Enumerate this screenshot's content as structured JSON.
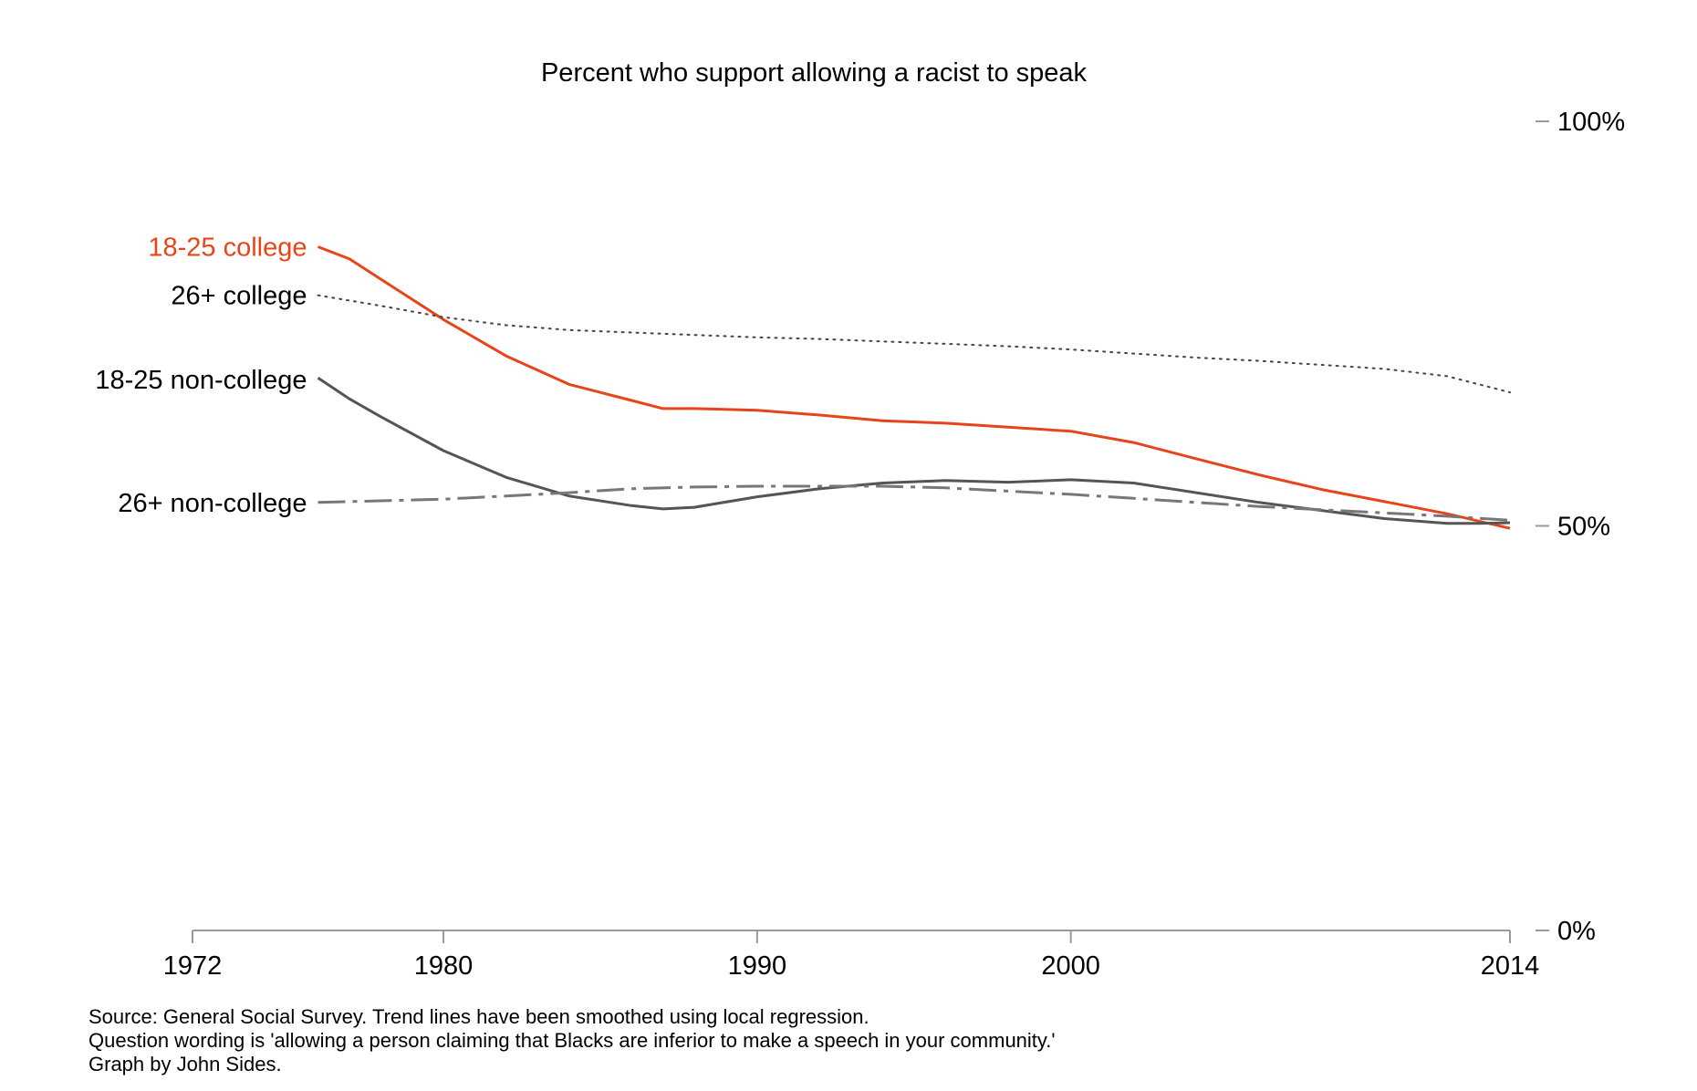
{
  "chart_data": {
    "type": "line",
    "title": "Percent who support allowing a racist to speak",
    "x_ticks": [
      1972,
      1980,
      1990,
      2000,
      2014
    ],
    "xlim": [
      1972,
      2014
    ],
    "ylim": [
      0,
      100
    ],
    "y_ticks": [
      {
        "value": 0,
        "label": "0%"
      },
      {
        "value": 50,
        "label": "50%"
      },
      {
        "value": 100,
        "label": "100%"
      }
    ],
    "grid": false,
    "legend": "direct labels at left end of lines",
    "series": [
      {
        "name": "18-25 college",
        "color": "#e8441a",
        "style": "solid",
        "x": [
          1976,
          1977,
          1978,
          1980,
          1982,
          1984,
          1986,
          1987,
          1988,
          1990,
          1992,
          1994,
          1996,
          1998,
          2000,
          2002,
          2004,
          2006,
          2008,
          2010,
          2012,
          2014
        ],
        "y": [
          84.5,
          83,
          80.5,
          75.5,
          71,
          67.5,
          65.5,
          64.5,
          64.5,
          64.3,
          63.7,
          63,
          62.7,
          62.2,
          61.7,
          60.3,
          58.3,
          56.3,
          54.5,
          53,
          51.5,
          49.7
        ]
      },
      {
        "name": "26+ college",
        "color": "#444444",
        "style": "dotted",
        "x": [
          1976,
          1978,
          1980,
          1982,
          1984,
          1986,
          1988,
          1990,
          1992,
          1994,
          1996,
          1998,
          2000,
          2002,
          2004,
          2006,
          2008,
          2010,
          2012,
          2014
        ],
        "y": [
          78.5,
          77.2,
          75.8,
          74.8,
          74.2,
          73.9,
          73.6,
          73.3,
          73.1,
          72.8,
          72.5,
          72.2,
          71.8,
          71.3,
          70.8,
          70.4,
          69.9,
          69.4,
          68.5,
          66.5
        ]
      },
      {
        "name": "18-25 non-college",
        "color": "#555555",
        "style": "solid",
        "x": [
          1976,
          1977,
          1978,
          1980,
          1982,
          1984,
          1986,
          1987,
          1988,
          1990,
          1992,
          1994,
          1996,
          1998,
          2000,
          2002,
          2004,
          2006,
          2008,
          2010,
          2012,
          2013,
          2014
        ],
        "y": [
          68.3,
          65.7,
          63.5,
          59.3,
          56,
          53.7,
          52.5,
          52.1,
          52.3,
          53.6,
          54.6,
          55.3,
          55.6,
          55.4,
          55.7,
          55.3,
          54.1,
          52.9,
          51.9,
          50.9,
          50.3,
          50.3,
          50.4
        ]
      },
      {
        "name": "26+ non-college",
        "color": "#777777",
        "style": "dashdot",
        "x": [
          1976,
          1978,
          1980,
          1982,
          1984,
          1986,
          1988,
          1990,
          1992,
          1994,
          1996,
          1998,
          2000,
          2002,
          2004,
          2006,
          2008,
          2010,
          2012,
          2014
        ],
        "y": [
          52.9,
          53.1,
          53.3,
          53.7,
          54.1,
          54.6,
          54.8,
          54.9,
          54.9,
          54.9,
          54.7,
          54.3,
          53.9,
          53.4,
          52.9,
          52.4,
          52,
          51.6,
          51.2,
          50.7
        ]
      }
    ]
  },
  "notes": {
    "source": "Source: General Social Survey. Trend lines have been smoothed using local regression.",
    "wording": "Question wording is 'allowing a person claiming that Blacks are inferior to make a speech in your community.'",
    "credit": "Graph by John Sides."
  }
}
